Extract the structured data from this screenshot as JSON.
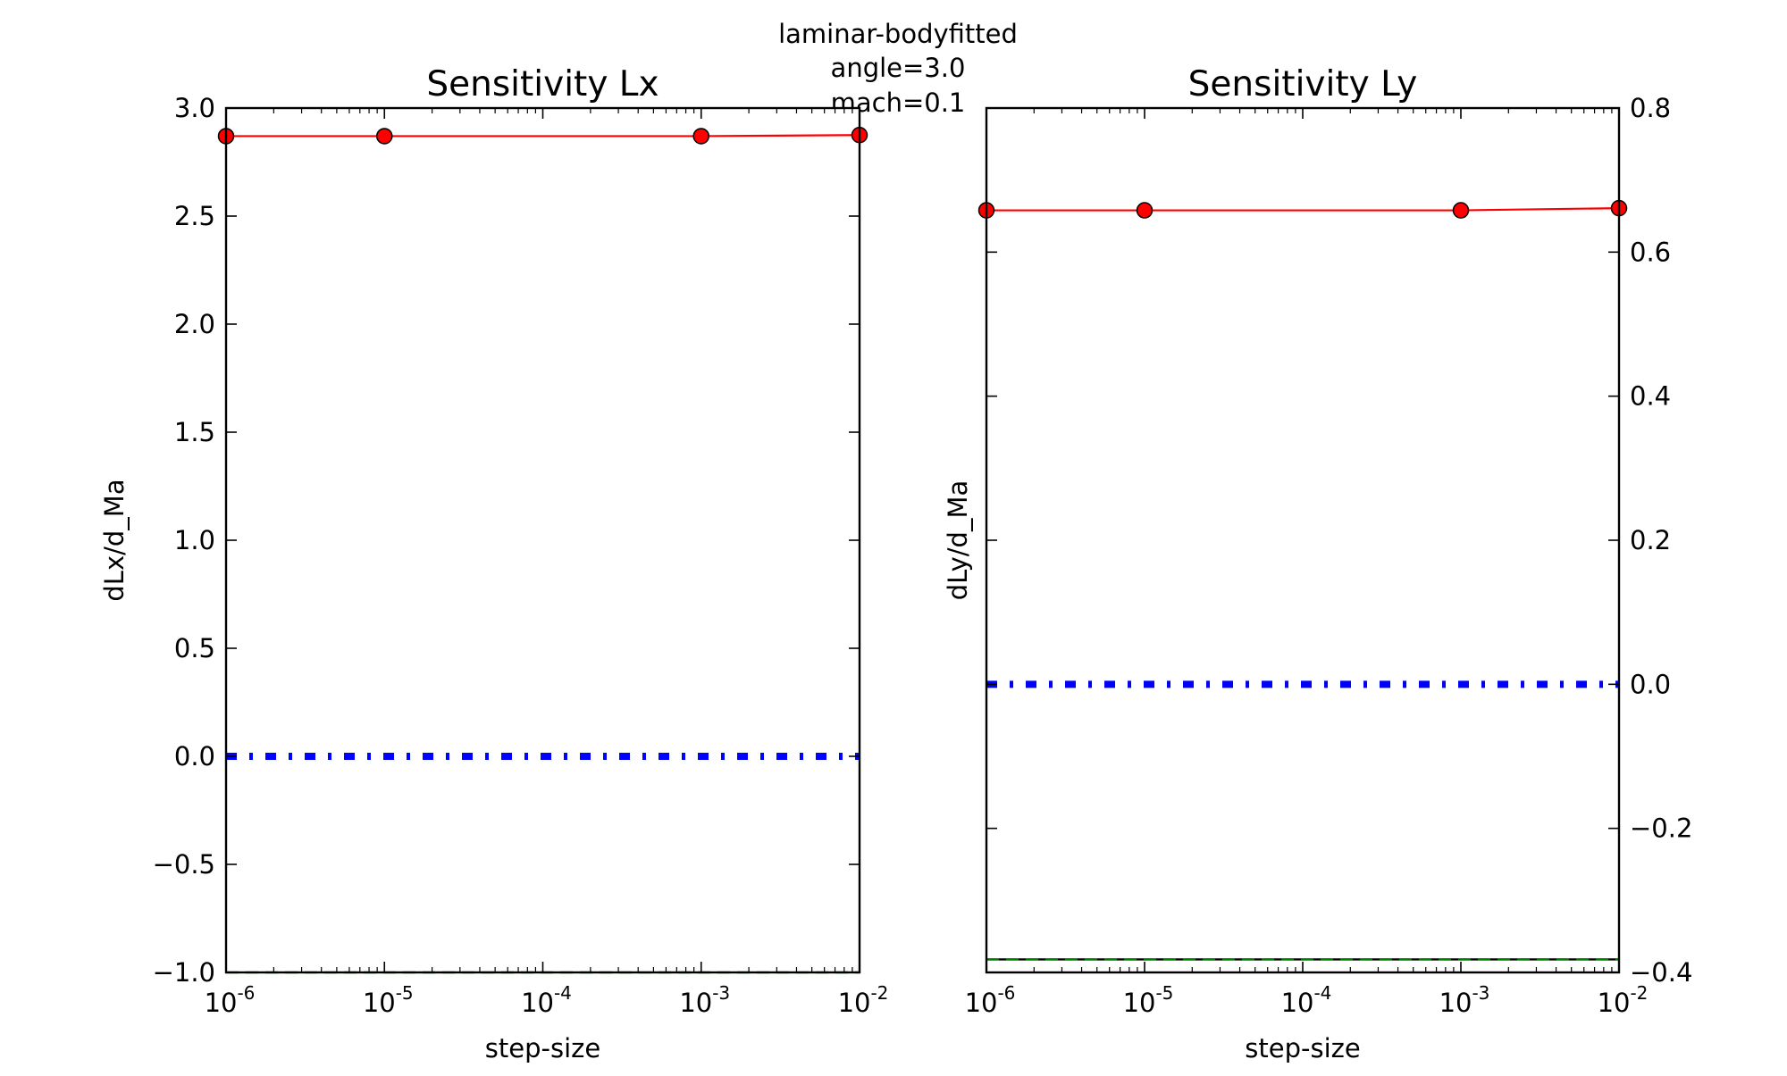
{
  "figure": {
    "suptitle_lines": [
      "laminar-bodyfitted",
      "angle=3.0",
      "mach=0.1"
    ]
  },
  "chart_data": [
    {
      "type": "line",
      "title": "Sensitivity Lx",
      "xlabel": "step-size",
      "ylabel": "dLx/d_Ma",
      "xscale": "log",
      "xlim": [
        1e-06,
        0.01
      ],
      "ylim": [
        -1.0,
        3.0
      ],
      "xtick_values": [
        1e-06,
        1e-05,
        0.0001,
        0.001,
        0.01
      ],
      "xtick_exponents": [
        "-6",
        "-5",
        "-4",
        "-3",
        "-2"
      ],
      "ytick_values": [
        -1.0,
        -0.5,
        0.0,
        0.5,
        1.0,
        1.5,
        2.0,
        2.5,
        3.0
      ],
      "ytick_labels": [
        "−1.0",
        "−0.5",
        "0.0",
        "0.5",
        "1.0",
        "1.5",
        "2.0",
        "2.5",
        "3.0"
      ],
      "yaxis_side": "left",
      "grid": false,
      "series": [
        {
          "color": "#ff0000",
          "style": "solid-with-circle-markers",
          "x": [
            1e-06,
            1e-05,
            0.001,
            0.01
          ],
          "y": [
            2.87,
            2.87,
            2.87,
            2.875
          ]
        },
        {
          "color": "#0000ff",
          "style": "dash-dot-thick",
          "x": [
            1e-06,
            0.01
          ],
          "y": [
            0.0,
            0.0
          ]
        },
        {
          "color": "#008000",
          "style": "dashed",
          "x": [
            1e-06,
            0.01
          ],
          "y": [
            -1.0,
            -1.0
          ]
        }
      ]
    },
    {
      "type": "line",
      "title": "Sensitivity Ly",
      "xlabel": "step-size",
      "ylabel": "dLy/d_Ma",
      "xscale": "log",
      "xlim": [
        1e-06,
        0.01
      ],
      "ylim": [
        -0.4,
        0.8
      ],
      "xtick_values": [
        1e-06,
        1e-05,
        0.0001,
        0.001,
        0.01
      ],
      "xtick_exponents": [
        "-6",
        "-5",
        "-4",
        "-3",
        "-2"
      ],
      "ytick_values": [
        -0.4,
        -0.2,
        0.0,
        0.2,
        0.4,
        0.6,
        0.8
      ],
      "ytick_labels": [
        "−0.4",
        "−0.2",
        "0.0",
        "0.2",
        "0.4",
        "0.6",
        "0.8"
      ],
      "yaxis_side": "right",
      "grid": false,
      "series": [
        {
          "color": "#ff0000",
          "style": "solid-with-circle-markers",
          "x": [
            1e-06,
            1e-05,
            0.001,
            0.01
          ],
          "y": [
            0.658,
            0.658,
            0.658,
            0.661
          ]
        },
        {
          "color": "#0000ff",
          "style": "dash-dot-thick",
          "x": [
            1e-06,
            0.01
          ],
          "y": [
            0.0,
            0.0
          ]
        },
        {
          "color": "#000000",
          "style": "solid",
          "x": [
            1e-06,
            0.01
          ],
          "y": [
            -0.382,
            -0.382
          ]
        },
        {
          "color": "#008000",
          "style": "dashed",
          "x": [
            1e-06,
            0.01
          ],
          "y": [
            -0.382,
            -0.382
          ]
        }
      ]
    }
  ]
}
